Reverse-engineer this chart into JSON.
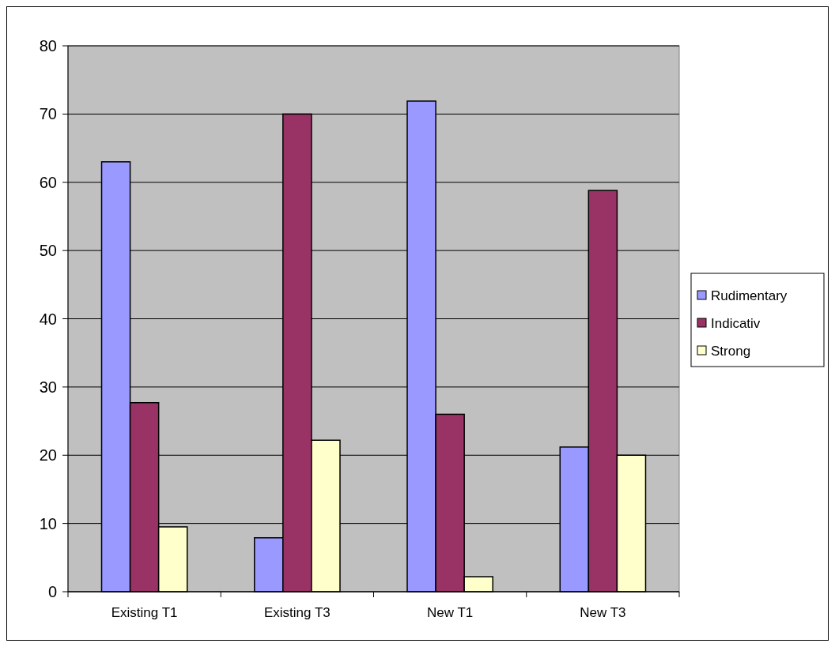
{
  "chart_data": {
    "type": "bar",
    "categories": [
      "Existing T1",
      "Existing T3",
      "New T1",
      "New T3"
    ],
    "series": [
      {
        "name": "Rudimentary",
        "color": "#9999ff",
        "values": [
          63,
          7.9,
          71.9,
          21.2
        ]
      },
      {
        "name": "Indicativ",
        "color": "#993366",
        "values": [
          27.7,
          70,
          26,
          58.8
        ]
      },
      {
        "name": "Strong",
        "color": "#ffffcc",
        "values": [
          9.5,
          22.2,
          2.2,
          20
        ]
      }
    ],
    "ylim": [
      0,
      80
    ],
    "yticks": [
      0,
      10,
      20,
      30,
      40,
      50,
      60,
      70,
      80
    ],
    "grid": "y",
    "legend": "right"
  }
}
